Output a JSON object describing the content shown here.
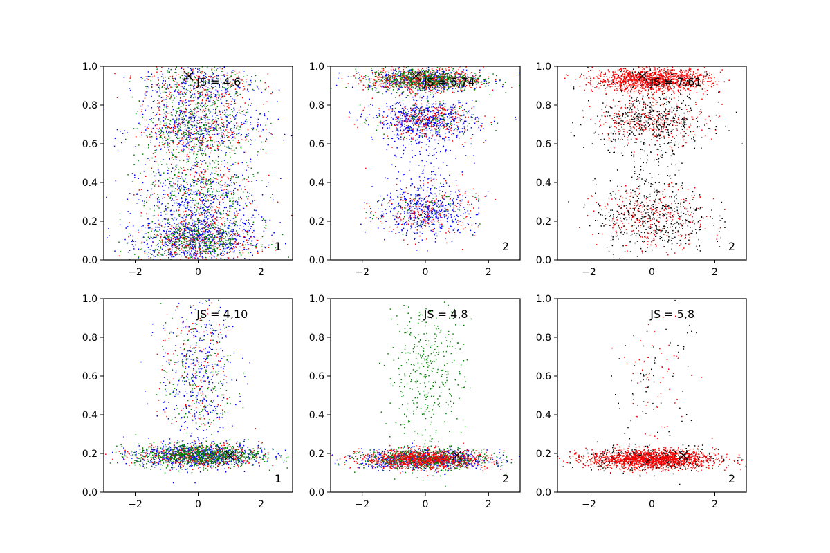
{
  "chart_data": [
    {
      "type": "scatter",
      "annotation": "JS = 4,6",
      "corner_label": "1",
      "marker": {
        "x": -0.3,
        "y": 0.95
      },
      "xlim": [
        -3,
        3
      ],
      "ylim": [
        0,
        1
      ],
      "xticks": [
        -2,
        0,
        2
      ],
      "yticks": [
        0.0,
        0.2,
        0.4,
        0.6,
        0.8,
        1.0
      ],
      "series": [
        {
          "color": "#0000ff",
          "clusters": [
            {
              "mu": 0.0,
              "sx": 1.0,
              "y": 0.1,
              "sy": 0.06,
              "n": 650
            },
            {
              "mu": 0.0,
              "sx": 1.0,
              "y": 0.3,
              "sy": 0.1,
              "n": 450
            },
            {
              "mu": 0.0,
              "sx": 1.0,
              "y": 0.67,
              "sy": 0.07,
              "n": 400
            },
            {
              "mu": 0.0,
              "sx": 0.9,
              "y": 0.9,
              "sy": 0.08,
              "n": 300
            }
          ]
        },
        {
          "color": "#ff0000",
          "clusters": [
            {
              "mu": 0.0,
              "sx": 0.9,
              "y": 0.1,
              "sy": 0.06,
              "n": 300
            },
            {
              "mu": 0.0,
              "sx": 0.9,
              "y": 0.35,
              "sy": 0.12,
              "n": 200
            },
            {
              "mu": 0.0,
              "sx": 0.9,
              "y": 0.67,
              "sy": 0.07,
              "n": 250
            },
            {
              "mu": 0.0,
              "sx": 0.9,
              "y": 0.9,
              "sy": 0.07,
              "n": 200
            }
          ]
        },
        {
          "color": "#008000",
          "clusters": [
            {
              "mu": 0.0,
              "sx": 0.9,
              "y": 0.1,
              "sy": 0.05,
              "n": 450
            },
            {
              "mu": 0.0,
              "sx": 0.9,
              "y": 0.35,
              "sy": 0.12,
              "n": 300
            },
            {
              "mu": 0.0,
              "sx": 0.9,
              "y": 0.67,
              "sy": 0.07,
              "n": 350
            },
            {
              "mu": 0.0,
              "sx": 0.9,
              "y": 0.9,
              "sy": 0.07,
              "n": 200
            }
          ]
        }
      ]
    },
    {
      "type": "scatter",
      "annotation": "JS = 6,74",
      "corner_label": "2",
      "marker": {
        "x": -0.3,
        "y": 0.95
      },
      "xlim": [
        -3,
        3
      ],
      "ylim": [
        0,
        1
      ],
      "xticks": [
        -2,
        0,
        2
      ],
      "yticks": [
        0.0,
        0.2,
        0.4,
        0.6,
        0.8,
        1.0
      ],
      "series": [
        {
          "color": "#0000ff",
          "clusters": [
            {
              "mu": 0.0,
              "sx": 0.8,
              "y": 0.25,
              "sy": 0.06,
              "n": 450
            },
            {
              "mu": 0.0,
              "sx": 0.8,
              "y": 0.72,
              "sy": 0.05,
              "n": 550
            },
            {
              "mu": 0.0,
              "sx": 0.9,
              "y": 0.93,
              "sy": 0.03,
              "n": 450
            },
            {
              "mu": 0.0,
              "sx": 0.6,
              "y": 0.5,
              "sy": 0.15,
              "n": 150
            }
          ]
        },
        {
          "color": "#ff0000",
          "clusters": [
            {
              "mu": 0.0,
              "sx": 0.8,
              "y": 0.25,
              "sy": 0.07,
              "n": 200
            },
            {
              "mu": 0.0,
              "sx": 0.8,
              "y": 0.72,
              "sy": 0.05,
              "n": 250
            },
            {
              "mu": 0.0,
              "sx": 0.9,
              "y": 0.93,
              "sy": 0.03,
              "n": 550
            }
          ]
        },
        {
          "color": "#008000",
          "clusters": [
            {
              "mu": 0.0,
              "sx": 0.8,
              "y": 0.25,
              "sy": 0.06,
              "n": 80
            },
            {
              "mu": 0.0,
              "sx": 0.8,
              "y": 0.72,
              "sy": 0.05,
              "n": 120
            },
            {
              "mu": 0.0,
              "sx": 0.9,
              "y": 0.93,
              "sy": 0.03,
              "n": 650
            }
          ]
        }
      ]
    },
    {
      "type": "scatter",
      "annotation": "JS = 7,61",
      "corner_label": "2",
      "marker": {
        "x": -0.3,
        "y": 0.95
      },
      "xlim": [
        -3,
        3
      ],
      "ylim": [
        0,
        1
      ],
      "xticks": [
        -2,
        0,
        2
      ],
      "yticks": [
        0.0,
        0.2,
        0.4,
        0.6,
        0.8,
        1.0
      ],
      "series": [
        {
          "color": "#000000",
          "clusters": [
            {
              "mu": 0.0,
              "sx": 0.9,
              "y": 0.22,
              "sy": 0.09,
              "n": 450
            },
            {
              "mu": 0.0,
              "sx": 0.9,
              "y": 0.72,
              "sy": 0.07,
              "n": 450
            },
            {
              "mu": 0.0,
              "sx": 0.6,
              "y": 0.5,
              "sy": 0.15,
              "n": 120
            },
            {
              "mu": 0.0,
              "sx": 0.9,
              "y": 0.93,
              "sy": 0.04,
              "n": 150
            }
          ]
        },
        {
          "color": "#ff0000",
          "clusters": [
            {
              "mu": 0.0,
              "sx": 0.9,
              "y": 0.22,
              "sy": 0.08,
              "n": 250
            },
            {
              "mu": 0.0,
              "sx": 0.9,
              "y": 0.72,
              "sy": 0.06,
              "n": 250
            },
            {
              "mu": 0.0,
              "sx": 0.9,
              "y": 0.93,
              "sy": 0.03,
              "n": 1200
            }
          ]
        }
      ]
    },
    {
      "type": "scatter",
      "annotation": "JS = 4,10",
      "corner_label": "1",
      "marker": {
        "x": 1.0,
        "y": 0.19
      },
      "xlim": [
        -3,
        3
      ],
      "ylim": [
        0,
        1
      ],
      "xticks": [
        -2,
        0,
        2
      ],
      "yticks": [
        0.0,
        0.2,
        0.4,
        0.6,
        0.8,
        1.0
      ],
      "series": [
        {
          "color": "#0000ff",
          "clusters": [
            {
              "mu": 0.0,
              "sx": 1.0,
              "y": 0.19,
              "sy": 0.03,
              "n": 700
            },
            {
              "mu": 0.0,
              "sx": 0.6,
              "y": 0.6,
              "sy": 0.2,
              "n": 350
            }
          ]
        },
        {
          "color": "#ff0000",
          "clusters": [
            {
              "mu": 0.0,
              "sx": 1.0,
              "y": 0.19,
              "sy": 0.03,
              "n": 350
            },
            {
              "mu": 0.0,
              "sx": 0.6,
              "y": 0.6,
              "sy": 0.2,
              "n": 150
            }
          ]
        },
        {
          "color": "#008000",
          "clusters": [
            {
              "mu": 0.0,
              "sx": 1.0,
              "y": 0.19,
              "sy": 0.03,
              "n": 800
            },
            {
              "mu": 0.0,
              "sx": 0.6,
              "y": 0.6,
              "sy": 0.2,
              "n": 200
            }
          ]
        }
      ]
    },
    {
      "type": "scatter",
      "annotation": "JS = 4,8",
      "corner_label": "2",
      "marker": {
        "x": 1.0,
        "y": 0.19
      },
      "xlim": [
        -3,
        3
      ],
      "ylim": [
        0,
        1
      ],
      "xticks": [
        -2,
        0,
        2
      ],
      "yticks": [
        0.0,
        0.2,
        0.4,
        0.6,
        0.8,
        1.0
      ],
      "series": [
        {
          "color": "#0000ff",
          "clusters": [
            {
              "mu": 0.0,
              "sx": 1.0,
              "y": 0.17,
              "sy": 0.025,
              "n": 700
            }
          ]
        },
        {
          "color": "#008000",
          "clusters": [
            {
              "mu": 0.0,
              "sx": 1.0,
              "y": 0.17,
              "sy": 0.025,
              "n": 700
            },
            {
              "mu": 0.0,
              "sx": 0.6,
              "y": 0.6,
              "sy": 0.22,
              "n": 400
            }
          ]
        },
        {
          "color": "#ff0000",
          "clusters": [
            {
              "mu": 0.0,
              "sx": 1.0,
              "y": 0.17,
              "sy": 0.025,
              "n": 900
            }
          ]
        }
      ]
    },
    {
      "type": "scatter",
      "annotation": "JS = 5,8",
      "corner_label": "2",
      "marker": {
        "x": 1.0,
        "y": 0.19
      },
      "xlim": [
        -3,
        3
      ],
      "ylim": [
        0,
        1
      ],
      "xticks": [
        -2,
        0,
        2
      ],
      "yticks": [
        0.0,
        0.2,
        0.4,
        0.6,
        0.8,
        1.0
      ],
      "series": [
        {
          "color": "#000000",
          "clusters": [
            {
              "mu": 0.0,
              "sx": 1.1,
              "y": 0.17,
              "sy": 0.03,
              "n": 500
            },
            {
              "mu": 0.0,
              "sx": 0.6,
              "y": 0.6,
              "sy": 0.2,
              "n": 80
            }
          ]
        },
        {
          "color": "#ff0000",
          "clusters": [
            {
              "mu": 0.0,
              "sx": 1.0,
              "y": 0.17,
              "sy": 0.025,
              "n": 1400
            },
            {
              "mu": 0.0,
              "sx": 0.6,
              "y": 0.6,
              "sy": 0.2,
              "n": 60
            }
          ]
        }
      ]
    }
  ]
}
